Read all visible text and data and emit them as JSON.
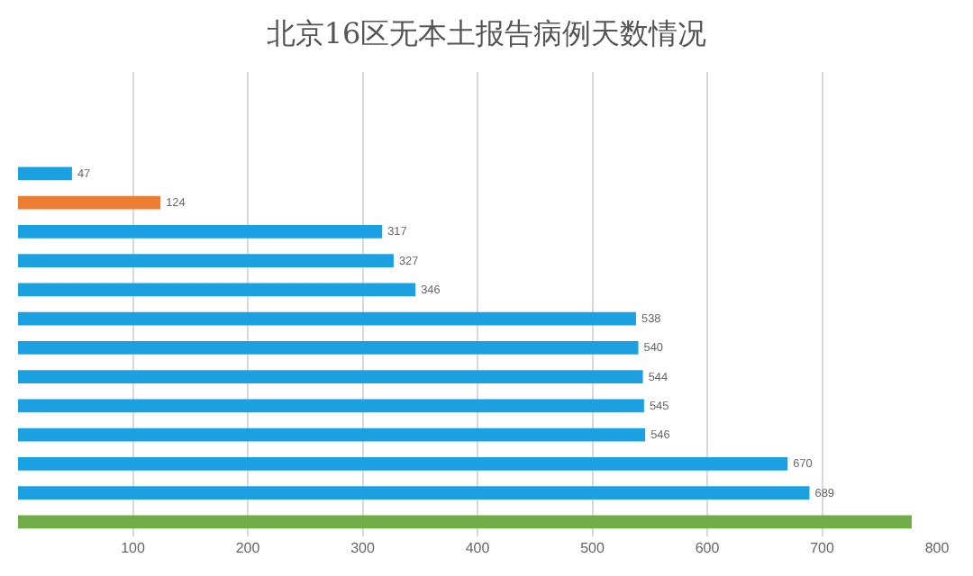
{
  "chart_data": {
    "type": "bar",
    "orientation": "horizontal",
    "title": "北京16区无本土报告病例天数情况",
    "categories": [
      null,
      null,
      null,
      null,
      null,
      null,
      null,
      null,
      null,
      null,
      null,
      null,
      null,
      null,
      null,
      null
    ],
    "values": [
      null,
      null,
      null,
      47,
      124,
      317,
      327,
      346,
      538,
      540,
      544,
      545,
      546,
      670,
      689,
      778
    ],
    "value_labels": [
      null,
      null,
      null,
      "47",
      "124",
      "317",
      "327",
      "346",
      "538",
      "540",
      "544",
      "545",
      "546",
      "670",
      "689",
      null
    ],
    "colors": [
      "#1ba1e2",
      "#1ba1e2",
      "#1ba1e2",
      "#1ba1e2",
      "#ed7d31",
      "#1ba1e2",
      "#1ba1e2",
      "#1ba1e2",
      "#1ba1e2",
      "#1ba1e2",
      "#1ba1e2",
      "#1ba1e2",
      "#1ba1e2",
      "#1ba1e2",
      "#1ba1e2",
      "#70ad47"
    ],
    "xlim": [
      0,
      800
    ],
    "xticks": [
      100,
      200,
      300,
      400,
      500,
      600,
      700,
      800
    ],
    "grid": "x",
    "tick_labels": "x"
  }
}
